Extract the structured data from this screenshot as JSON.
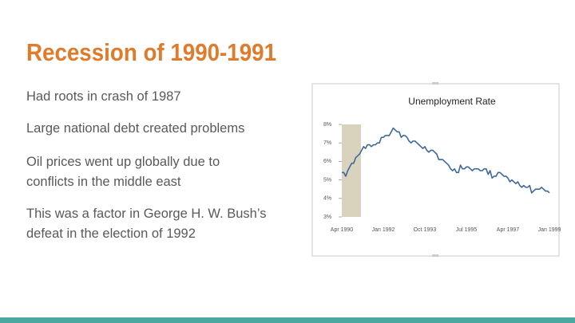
{
  "slide": {
    "title": "Recession of 1990-1991",
    "bullets": [
      [
        "Had roots in crash of 1987"
      ],
      [
        "Large national debt created problems"
      ],
      [
        "Oil prices went up globally due to",
        "conflicts in the middle east"
      ],
      [
        "This was a factor in George H. W. Bush’s",
        "defeat in the election of 1992"
      ]
    ]
  },
  "chart_data": {
    "type": "line",
    "title": "Unemployment Rate",
    "color": "#3d6a9a",
    "categories": [
      "Apr 1990",
      null,
      null,
      null,
      null,
      null,
      null,
      null,
      null,
      null,
      null,
      null,
      null,
      null,
      null,
      null,
      null,
      null,
      null,
      null,
      null,
      "Jan 1992",
      null,
      null,
      null,
      null,
      null,
      null,
      null,
      null,
      null,
      null,
      null,
      null,
      null,
      null,
      null,
      null,
      null,
      null,
      null,
      null,
      "Oct 1993",
      null,
      null,
      null,
      null,
      null,
      null,
      null,
      null,
      null,
      null,
      null,
      null,
      null,
      null,
      null,
      null,
      null,
      null,
      null,
      null,
      "Jul 1995",
      null,
      null,
      null,
      null,
      null,
      null,
      null,
      null,
      null,
      null,
      null,
      null,
      null,
      null,
      null,
      null,
      null,
      null,
      null,
      null,
      "Apr 1997",
      null,
      null,
      null,
      null,
      null,
      null,
      null,
      null,
      null,
      null,
      null,
      null,
      null,
      null,
      null,
      null,
      null,
      null,
      null,
      null,
      "Jan 1999"
    ],
    "values": [
      5.4,
      5.4,
      5.2,
      5.5,
      5.7,
      5.9,
      5.9,
      6.2,
      6.3,
      6.4,
      6.6,
      6.8,
      6.7,
      6.9,
      6.9,
      6.8,
      6.9,
      6.9,
      7.0,
      7.0,
      7.3,
      7.3,
      7.4,
      7.4,
      7.4,
      7.6,
      7.8,
      7.7,
      7.6,
      7.6,
      7.3,
      7.4,
      7.4,
      7.3,
      7.1,
      7.0,
      7.1,
      7.1,
      7.0,
      6.9,
      6.8,
      6.7,
      6.8,
      6.6,
      6.5,
      6.6,
      6.6,
      6.5,
      6.4,
      6.1,
      6.1,
      6.1,
      6.0,
      5.9,
      5.8,
      5.6,
      5.5,
      5.6,
      5.4,
      5.4,
      5.8,
      5.6,
      5.6,
      5.7,
      5.7,
      5.6,
      5.5,
      5.6,
      5.6,
      5.6,
      5.5,
      5.5,
      5.6,
      5.6,
      5.3,
      5.5,
      5.1,
      5.2,
      5.2,
      5.4,
      5.4,
      5.3,
      5.2,
      5.2,
      5.1,
      4.9,
      5.0,
      4.9,
      4.8,
      4.9,
      4.7,
      4.6,
      4.7,
      4.6,
      4.6,
      4.7,
      4.3,
      4.4,
      4.5,
      4.5,
      4.5,
      4.6,
      4.5,
      4.4,
      4.4,
      4.3
    ],
    "ylim": [
      3,
      8
    ],
    "yticks": [
      {
        "value": 3,
        "label": "3%"
      },
      {
        "value": 4,
        "label": "4%"
      },
      {
        "value": 5,
        "label": "5%"
      },
      {
        "value": 6,
        "label": "6%"
      },
      {
        "value": 7,
        "label": "7%"
      },
      {
        "value": 8,
        "label": "8%"
      }
    ]
  }
}
